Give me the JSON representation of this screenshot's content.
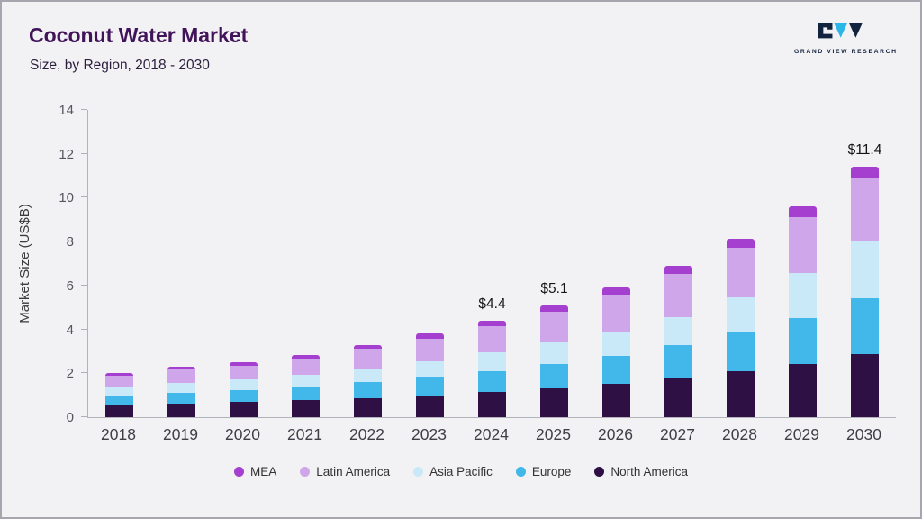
{
  "header": {
    "title": "Coconut Water Market",
    "subtitle": "Size, by Region, 2018 - 2030",
    "logo_text": "GRAND VIEW RESEARCH"
  },
  "colors": {
    "background": "#f2f1f3",
    "title": "#41145a",
    "logo_navy": "#12233f",
    "logo_cyan": "#2ab7e8"
  },
  "chart_data": {
    "type": "bar",
    "stacked": true,
    "title": "Coconut Water Market",
    "subtitle": "Size, by Region, 2018 - 2030",
    "xlabel": "",
    "ylabel": "Market Size (US$B)",
    "ylim": [
      0,
      14
    ],
    "yticks": [
      0,
      2,
      4,
      6,
      8,
      10,
      12,
      14
    ],
    "grid": false,
    "legend_position": "bottom",
    "categories": [
      "2018",
      "2019",
      "2020",
      "2021",
      "2022",
      "2023",
      "2024",
      "2025",
      "2026",
      "2027",
      "2028",
      "2029",
      "2030"
    ],
    "series": [
      {
        "name": "North America",
        "color": "#2e1045",
        "values": [
          0.55,
          0.62,
          0.68,
          0.77,
          0.88,
          1.0,
          1.15,
          1.32,
          1.52,
          1.77,
          2.08,
          2.43,
          2.88
        ]
      },
      {
        "name": "Europe",
        "color": "#41b8e9",
        "values": [
          0.45,
          0.5,
          0.55,
          0.62,
          0.72,
          0.83,
          0.95,
          1.1,
          1.28,
          1.5,
          1.78,
          2.1,
          2.52
        ]
      },
      {
        "name": "Asia Pacific",
        "color": "#c9e8f8",
        "values": [
          0.4,
          0.45,
          0.48,
          0.55,
          0.62,
          0.72,
          0.85,
          0.98,
          1.12,
          1.3,
          1.6,
          2.05,
          2.6
        ]
      },
      {
        "name": "Latin America",
        "color": "#cfa6e9",
        "values": [
          0.5,
          0.6,
          0.65,
          0.75,
          0.9,
          1.04,
          1.21,
          1.42,
          1.66,
          1.97,
          2.27,
          2.54,
          2.9
        ]
      },
      {
        "name": "MEA",
        "color": "#a53fd0",
        "values": [
          0.1,
          0.13,
          0.14,
          0.16,
          0.18,
          0.21,
          0.24,
          0.28,
          0.32,
          0.36,
          0.42,
          0.48,
          0.5
        ]
      }
    ],
    "totals": [
      2.0,
      2.3,
      2.5,
      2.85,
      3.3,
      3.8,
      4.4,
      5.1,
      5.9,
      6.9,
      8.15,
      9.6,
      11.4
    ],
    "annotations": [
      {
        "category": "2024",
        "label": "$4.4"
      },
      {
        "category": "2025",
        "label": "$5.1"
      },
      {
        "category": "2030",
        "label": "$11.4"
      }
    ],
    "legend": [
      {
        "label": "MEA",
        "color": "#a53fd0"
      },
      {
        "label": "Latin America",
        "color": "#cfa6e9"
      },
      {
        "label": "Asia Pacific",
        "color": "#c9e8f8"
      },
      {
        "label": "Europe",
        "color": "#41b8e9"
      },
      {
        "label": "North America",
        "color": "#2e1045"
      }
    ]
  }
}
